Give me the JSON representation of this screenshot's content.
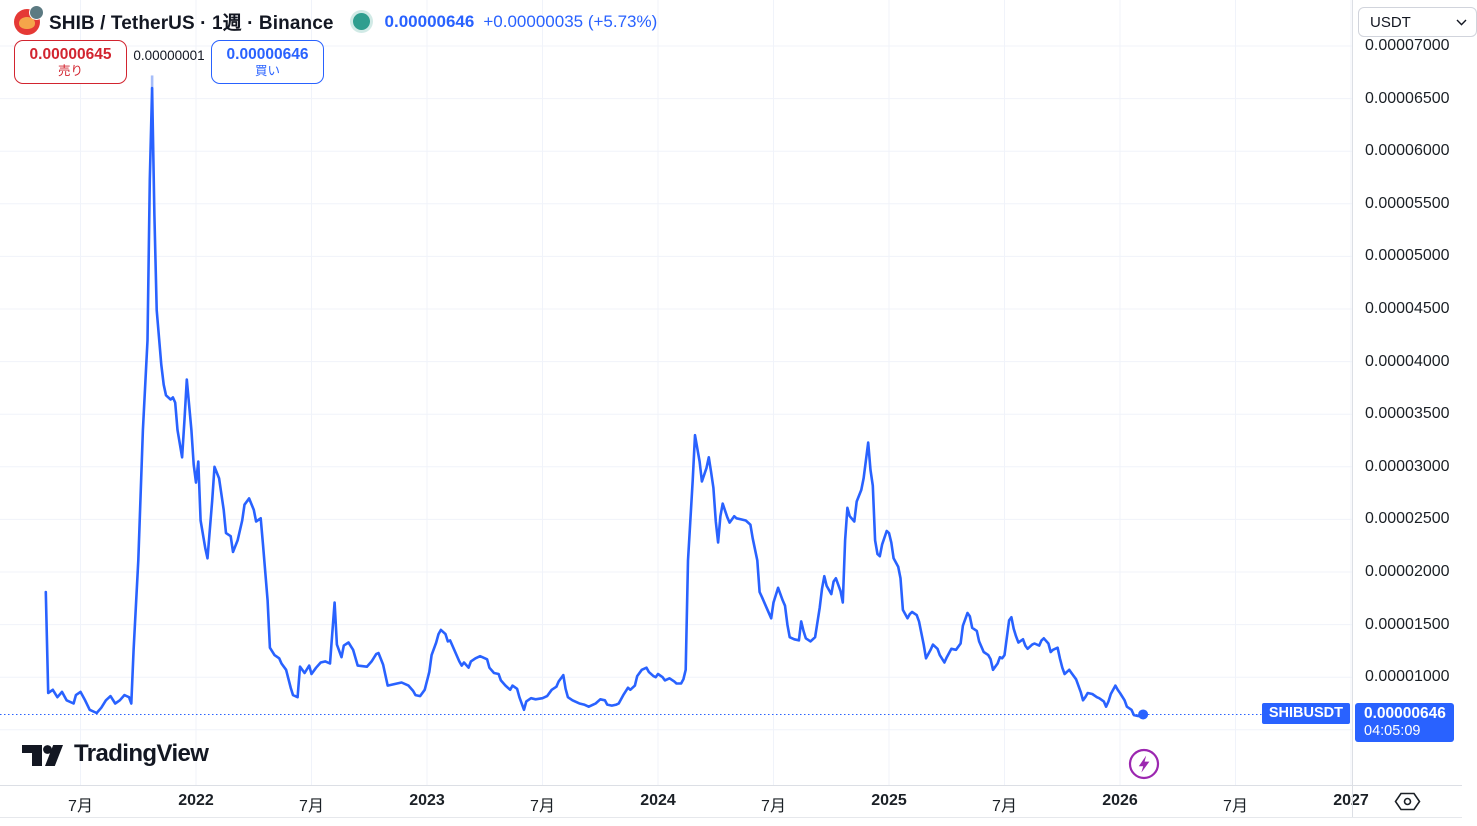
{
  "header": {
    "symbol_title": "SHIB / TetherUS · 1週 · Binance",
    "last_price": "0.00000646",
    "change": "+0.00000035 (+5.73%)",
    "sell_button": {
      "price": "0.00000645",
      "label": "売り"
    },
    "spread": "0.00000001",
    "buy_button": {
      "price": "0.00000646",
      "label": "買い"
    }
  },
  "price_axis": {
    "currency_selector": "USDT",
    "current_badge": {
      "price": "0.00000646",
      "countdown": "04:05:09"
    }
  },
  "price_line_tag": "SHIBUSDT",
  "logo_text": "TradingView",
  "colors": {
    "line": "#2962ff",
    "line_fade": "#a6bdf9",
    "grid": "#f0f3fa",
    "sell_red": "#d2242f",
    "buy_blue": "#2962ff",
    "up_dot": "#2f9e8f",
    "badge_bg": "#2962ff",
    "bolt_purple": "#9c27b0",
    "text": "#131722"
  },
  "chart_data": {
    "type": "line",
    "title": "SHIB / TetherUS, 1 week, Binance",
    "x_unit": "decimal_year",
    "price_unit": "USDT, values are price x 1e-8 (e.g. 646 = 0.00000646)",
    "legend": "SHIBUSDT",
    "grid": true,
    "ylim_p8": [
      0,
      7437
    ],
    "xlim_year": [
      2021.15,
      2027.0
    ],
    "last_point": {
      "year": 2026.1,
      "p8": 646,
      "price": "0.00000646",
      "countdown": "04:05:09"
    },
    "peak_fade": {
      "year": 2021.81,
      "p8_from": 6720,
      "p8_to": 6580
    },
    "y_ticks": [
      {
        "p8": 7000,
        "label": "0.00007000"
      },
      {
        "p8": 6500,
        "label": "0.00006500"
      },
      {
        "p8": 6000,
        "label": "0.00006000"
      },
      {
        "p8": 5500,
        "label": "0.00005500"
      },
      {
        "p8": 5000,
        "label": "0.00005000"
      },
      {
        "p8": 4500,
        "label": "0.00004500"
      },
      {
        "p8": 4000,
        "label": "0.00004000"
      },
      {
        "p8": 3500,
        "label": "0.00003500"
      },
      {
        "p8": 3000,
        "label": "0.00003000"
      },
      {
        "p8": 2500,
        "label": "0.00002500"
      },
      {
        "p8": 2000,
        "label": "0.00002000"
      },
      {
        "p8": 1500,
        "label": "0.00001500"
      },
      {
        "p8": 1000,
        "label": "0.00001000"
      },
      {
        "p8": 500,
        "label": ""
      }
    ],
    "x_ticks": [
      {
        "year": 2021.5,
        "label": "7月",
        "bold": false
      },
      {
        "year": 2022.0,
        "label": "2022",
        "bold": true
      },
      {
        "year": 2022.5,
        "label": "7月",
        "bold": false
      },
      {
        "year": 2023.0,
        "label": "2023",
        "bold": true
      },
      {
        "year": 2023.5,
        "label": "7月",
        "bold": false
      },
      {
        "year": 2024.0,
        "label": "2024",
        "bold": true
      },
      {
        "year": 2024.5,
        "label": "7月",
        "bold": false
      },
      {
        "year": 2025.0,
        "label": "2025",
        "bold": true
      },
      {
        "year": 2025.5,
        "label": "7月",
        "bold": false
      },
      {
        "year": 2026.0,
        "label": "2026",
        "bold": true
      },
      {
        "year": 2026.5,
        "label": "7月",
        "bold": false
      },
      {
        "year": 2027.0,
        "label": "2027",
        "bold": true
      }
    ],
    "points": [
      [
        2021.35,
        1810
      ],
      [
        2021.36,
        850
      ],
      [
        2021.38,
        880
      ],
      [
        2021.4,
        810
      ],
      [
        2021.42,
        860
      ],
      [
        2021.44,
        780
      ],
      [
        2021.47,
        750
      ],
      [
        2021.48,
        830
      ],
      [
        2021.5,
        860
      ],
      [
        2021.52,
        780
      ],
      [
        2021.54,
        690
      ],
      [
        2021.57,
        660
      ],
      [
        2021.59,
        710
      ],
      [
        2021.61,
        780
      ],
      [
        2021.63,
        820
      ],
      [
        2021.65,
        750
      ],
      [
        2021.67,
        780
      ],
      [
        2021.69,
        830
      ],
      [
        2021.71,
        810
      ],
      [
        2021.72,
        750
      ],
      [
        2021.73,
        1260
      ],
      [
        2021.75,
        2110
      ],
      [
        2021.76,
        2730
      ],
      [
        2021.77,
        3350
      ],
      [
        2021.79,
        4200
      ],
      [
        2021.8,
        5730
      ],
      [
        2021.81,
        6600
      ],
      [
        2021.82,
        5390
      ],
      [
        2021.83,
        4490
      ],
      [
        2021.85,
        3970
      ],
      [
        2021.86,
        3780
      ],
      [
        2021.87,
        3680
      ],
      [
        2021.89,
        3640
      ],
      [
        2021.9,
        3660
      ],
      [
        2021.91,
        3610
      ],
      [
        2021.92,
        3350
      ],
      [
        2021.94,
        3090
      ],
      [
        2021.95,
        3450
      ],
      [
        2021.96,
        3830
      ],
      [
        2021.98,
        3350
      ],
      [
        2021.99,
        3020
      ],
      [
        2022.0,
        2850
      ],
      [
        2022.01,
        3050
      ],
      [
        2022.02,
        2490
      ],
      [
        2022.04,
        2230
      ],
      [
        2022.05,
        2130
      ],
      [
        2022.07,
        2680
      ],
      [
        2022.08,
        3000
      ],
      [
        2022.1,
        2890
      ],
      [
        2022.12,
        2590
      ],
      [
        2022.13,
        2370
      ],
      [
        2022.15,
        2340
      ],
      [
        2022.16,
        2190
      ],
      [
        2022.18,
        2300
      ],
      [
        2022.2,
        2490
      ],
      [
        2022.21,
        2640
      ],
      [
        2022.23,
        2700
      ],
      [
        2022.25,
        2590
      ],
      [
        2022.26,
        2480
      ],
      [
        2022.28,
        2510
      ],
      [
        2022.29,
        2260
      ],
      [
        2022.31,
        1730
      ],
      [
        2022.32,
        1280
      ],
      [
        2022.34,
        1210
      ],
      [
        2022.36,
        1180
      ],
      [
        2022.37,
        1130
      ],
      [
        2022.39,
        1070
      ],
      [
        2022.41,
        900
      ],
      [
        2022.42,
        830
      ],
      [
        2022.44,
        810
      ],
      [
        2022.45,
        1100
      ],
      [
        2022.47,
        1040
      ],
      [
        2022.49,
        1110
      ],
      [
        2022.5,
        1030
      ],
      [
        2022.52,
        1090
      ],
      [
        2022.54,
        1140
      ],
      [
        2022.56,
        1150
      ],
      [
        2022.58,
        1130
      ],
      [
        2022.6,
        1710
      ],
      [
        2022.61,
        1310
      ],
      [
        2022.63,
        1190
      ],
      [
        2022.64,
        1300
      ],
      [
        2022.66,
        1330
      ],
      [
        2022.68,
        1260
      ],
      [
        2022.7,
        1110
      ],
      [
        2022.74,
        1100
      ],
      [
        2022.76,
        1150
      ],
      [
        2022.78,
        1220
      ],
      [
        2022.79,
        1230
      ],
      [
        2022.81,
        1120
      ],
      [
        2022.83,
        920
      ],
      [
        2022.87,
        940
      ],
      [
        2022.89,
        950
      ],
      [
        2022.92,
        920
      ],
      [
        2022.94,
        870
      ],
      [
        2022.95,
        830
      ],
      [
        2022.97,
        820
      ],
      [
        2022.99,
        880
      ],
      [
        2023.01,
        1050
      ],
      [
        2023.02,
        1210
      ],
      [
        2023.04,
        1330
      ],
      [
        2023.05,
        1410
      ],
      [
        2023.06,
        1450
      ],
      [
        2023.08,
        1410
      ],
      [
        2023.09,
        1340
      ],
      [
        2023.1,
        1350
      ],
      [
        2023.12,
        1250
      ],
      [
        2023.14,
        1150
      ],
      [
        2023.15,
        1110
      ],
      [
        2023.16,
        1140
      ],
      [
        2023.18,
        1090
      ],
      [
        2023.19,
        1150
      ],
      [
        2023.21,
        1180
      ],
      [
        2023.23,
        1200
      ],
      [
        2023.24,
        1190
      ],
      [
        2023.26,
        1170
      ],
      [
        2023.27,
        1090
      ],
      [
        2023.29,
        1040
      ],
      [
        2023.31,
        1030
      ],
      [
        2023.32,
        970
      ],
      [
        2023.34,
        920
      ],
      [
        2023.36,
        880
      ],
      [
        2023.37,
        920
      ],
      [
        2023.39,
        890
      ],
      [
        2023.4,
        810
      ],
      [
        2023.42,
        690
      ],
      [
        2023.43,
        770
      ],
      [
        2023.45,
        800
      ],
      [
        2023.47,
        790
      ],
      [
        2023.5,
        800
      ],
      [
        2023.52,
        820
      ],
      [
        2023.54,
        880
      ],
      [
        2023.56,
        910
      ],
      [
        2023.57,
        960
      ],
      [
        2023.59,
        1020
      ],
      [
        2023.6,
        890
      ],
      [
        2023.61,
        810
      ],
      [
        2023.63,
        780
      ],
      [
        2023.65,
        760
      ],
      [
        2023.66,
        750
      ],
      [
        2023.68,
        740
      ],
      [
        2023.7,
        720
      ],
      [
        2023.72,
        740
      ],
      [
        2023.73,
        750
      ],
      [
        2023.75,
        790
      ],
      [
        2023.77,
        780
      ],
      [
        2023.78,
        740
      ],
      [
        2023.8,
        730
      ],
      [
        2023.82,
        740
      ],
      [
        2023.83,
        750
      ],
      [
        2023.85,
        830
      ],
      [
        2023.87,
        900
      ],
      [
        2023.88,
        880
      ],
      [
        2023.9,
        920
      ],
      [
        2023.91,
        1010
      ],
      [
        2023.93,
        1070
      ],
      [
        2023.95,
        1090
      ],
      [
        2023.96,
        1050
      ],
      [
        2023.98,
        1010
      ],
      [
        2023.99,
        1000
      ],
      [
        2024.0,
        1030
      ],
      [
        2024.02,
        1000
      ],
      [
        2024.03,
        970
      ],
      [
        2024.05,
        990
      ],
      [
        2024.07,
        960
      ],
      [
        2024.08,
        940
      ],
      [
        2024.1,
        940
      ],
      [
        2024.11,
        980
      ],
      [
        2024.12,
        1070
      ],
      [
        2024.13,
        2110
      ],
      [
        2024.15,
        2870
      ],
      [
        2024.16,
        3300
      ],
      [
        2024.18,
        3050
      ],
      [
        2024.19,
        2860
      ],
      [
        2024.21,
        2990
      ],
      [
        2024.22,
        3090
      ],
      [
        2024.23,
        2950
      ],
      [
        2024.24,
        2800
      ],
      [
        2024.25,
        2480
      ],
      [
        2024.26,
        2280
      ],
      [
        2024.27,
        2530
      ],
      [
        2024.28,
        2650
      ],
      [
        2024.3,
        2520
      ],
      [
        2024.31,
        2470
      ],
      [
        2024.33,
        2530
      ],
      [
        2024.34,
        2510
      ],
      [
        2024.36,
        2500
      ],
      [
        2024.38,
        2490
      ],
      [
        2024.4,
        2450
      ],
      [
        2024.41,
        2320
      ],
      [
        2024.43,
        2110
      ],
      [
        2024.44,
        1810
      ],
      [
        2024.45,
        1760
      ],
      [
        2024.47,
        1660
      ],
      [
        2024.49,
        1560
      ],
      [
        2024.5,
        1710
      ],
      [
        2024.52,
        1850
      ],
      [
        2024.54,
        1730
      ],
      [
        2024.55,
        1680
      ],
      [
        2024.56,
        1500
      ],
      [
        2024.57,
        1380
      ],
      [
        2024.59,
        1360
      ],
      [
        2024.61,
        1350
      ],
      [
        2024.62,
        1530
      ],
      [
        2024.63,
        1440
      ],
      [
        2024.64,
        1370
      ],
      [
        2024.66,
        1340
      ],
      [
        2024.68,
        1380
      ],
      [
        2024.7,
        1660
      ],
      [
        2024.71,
        1840
      ],
      [
        2024.72,
        1960
      ],
      [
        2024.73,
        1870
      ],
      [
        2024.75,
        1790
      ],
      [
        2024.76,
        1910
      ],
      [
        2024.77,
        1940
      ],
      [
        2024.79,
        1820
      ],
      [
        2024.8,
        1710
      ],
      [
        2024.81,
        2300
      ],
      [
        2024.82,
        2610
      ],
      [
        2024.83,
        2530
      ],
      [
        2024.85,
        2480
      ],
      [
        2024.86,
        2670
      ],
      [
        2024.88,
        2780
      ],
      [
        2024.89,
        2890
      ],
      [
        2024.91,
        3230
      ],
      [
        2024.92,
        2970
      ],
      [
        2024.93,
        2820
      ],
      [
        2024.94,
        2300
      ],
      [
        2024.95,
        2170
      ],
      [
        2024.96,
        2150
      ],
      [
        2024.97,
        2260
      ],
      [
        2024.99,
        2390
      ],
      [
        2025.0,
        2370
      ],
      [
        2025.01,
        2280
      ],
      [
        2025.02,
        2130
      ],
      [
        2025.04,
        2050
      ],
      [
        2025.05,
        1940
      ],
      [
        2025.06,
        1640
      ],
      [
        2025.08,
        1560
      ],
      [
        2025.09,
        1600
      ],
      [
        2025.1,
        1620
      ],
      [
        2025.12,
        1590
      ],
      [
        2025.13,
        1530
      ],
      [
        2025.15,
        1310
      ],
      [
        2025.16,
        1180
      ],
      [
        2025.18,
        1260
      ],
      [
        2025.19,
        1310
      ],
      [
        2025.21,
        1270
      ],
      [
        2025.22,
        1210
      ],
      [
        2025.24,
        1140
      ],
      [
        2025.25,
        1190
      ],
      [
        2025.27,
        1270
      ],
      [
        2025.29,
        1260
      ],
      [
        2025.31,
        1320
      ],
      [
        2025.32,
        1490
      ],
      [
        2025.34,
        1610
      ],
      [
        2025.35,
        1580
      ],
      [
        2025.36,
        1470
      ],
      [
        2025.38,
        1440
      ],
      [
        2025.39,
        1340
      ],
      [
        2025.41,
        1240
      ],
      [
        2025.43,
        1210
      ],
      [
        2025.44,
        1170
      ],
      [
        2025.45,
        1070
      ],
      [
        2025.47,
        1130
      ],
      [
        2025.48,
        1190
      ],
      [
        2025.49,
        1180
      ],
      [
        2025.5,
        1210
      ],
      [
        2025.52,
        1540
      ],
      [
        2025.53,
        1570
      ],
      [
        2025.54,
        1460
      ],
      [
        2025.55,
        1390
      ],
      [
        2025.56,
        1330
      ],
      [
        2025.58,
        1360
      ],
      [
        2025.59,
        1300
      ],
      [
        2025.6,
        1270
      ],
      [
        2025.62,
        1310
      ],
      [
        2025.63,
        1320
      ],
      [
        2025.65,
        1300
      ],
      [
        2025.66,
        1350
      ],
      [
        2025.67,
        1370
      ],
      [
        2025.69,
        1320
      ],
      [
        2025.7,
        1240
      ],
      [
        2025.71,
        1260
      ],
      [
        2025.73,
        1280
      ],
      [
        2025.74,
        1180
      ],
      [
        2025.75,
        1090
      ],
      [
        2025.76,
        1030
      ],
      [
        2025.78,
        1070
      ],
      [
        2025.79,
        1040
      ],
      [
        2025.81,
        980
      ],
      [
        2025.83,
        860
      ],
      [
        2025.84,
        780
      ],
      [
        2025.85,
        810
      ],
      [
        2025.86,
        850
      ],
      [
        2025.88,
        840
      ],
      [
        2025.9,
        810
      ],
      [
        2025.91,
        800
      ],
      [
        2025.93,
        770
      ],
      [
        2025.94,
        720
      ],
      [
        2025.95,
        770
      ],
      [
        2025.96,
        840
      ],
      [
        2025.98,
        920
      ],
      [
        2025.99,
        880
      ],
      [
        2026.0,
        850
      ],
      [
        2026.02,
        780
      ],
      [
        2026.03,
        720
      ],
      [
        2026.05,
        690
      ],
      [
        2026.06,
        640
      ],
      [
        2026.08,
        630
      ],
      [
        2026.09,
        650
      ],
      [
        2026.1,
        646
      ]
    ]
  }
}
